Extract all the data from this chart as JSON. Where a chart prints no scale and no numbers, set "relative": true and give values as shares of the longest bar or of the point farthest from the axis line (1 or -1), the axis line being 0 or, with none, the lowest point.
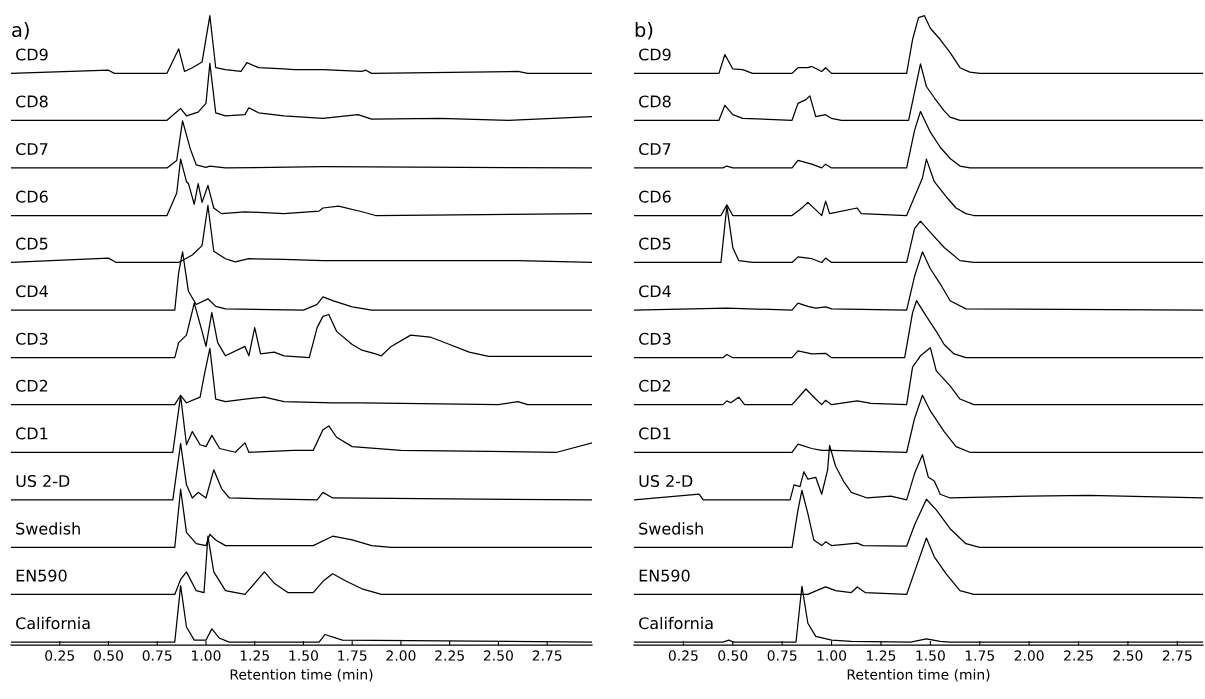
{
  "chart_data": [
    {
      "type": "line",
      "title": "a)",
      "xlabel": "Retention time (min)",
      "relative": true,
      "tick_labels": "x",
      "legend": false,
      "xlim": [
        0,
        2.98
      ],
      "xticks": [
        0.25,
        {
          "value": 0.5,
          "label": "0.50"
        },
        0.75,
        {
          "value": 1,
          "label": "1.00"
        },
        1.25,
        {
          "value": 1.5,
          "label": "1.50"
        },
        1.75,
        {
          "value": 2,
          "label": "2.00"
        },
        2.25,
        {
          "value": 2.5,
          "label": "2.50"
        },
        2.75
      ],
      "series": [
        {
          "name": "CD9",
          "color": "#000000",
          "x": [
            0,
            0.5,
            0.53,
            0.8,
            0.86,
            0.89,
            0.93,
            0.98,
            1.02,
            1.05,
            1.1,
            1.18,
            1.21,
            1.27,
            1.4,
            1.45,
            1.6,
            1.8,
            1.82,
            1.85,
            2.6,
            2.65,
            2.98
          ],
          "values": [
            0.908,
            0.913,
            0.908,
            0.908,
            0.947,
            0.911,
            0.917,
            0.926,
            1.0,
            0.917,
            0.914,
            0.911,
            0.925,
            0.917,
            0.915,
            0.914,
            0.914,
            0.911,
            0.913,
            0.908,
            0.911,
            0.908,
            0.908
          ]
        },
        {
          "name": "CD8",
          "color": "#000000",
          "x": [
            0,
            0.8,
            0.87,
            0.9,
            0.96,
            1.0,
            1.02,
            1.05,
            1.1,
            1.2,
            1.22,
            1.27,
            1.4,
            1.6,
            1.78,
            1.85,
            2.2,
            2.55,
            2.98
          ],
          "values": [
            0.833,
            0.833,
            0.852,
            0.84,
            0.846,
            0.86,
            0.924,
            0.845,
            0.84,
            0.842,
            0.853,
            0.845,
            0.84,
            0.836,
            0.842,
            0.835,
            0.836,
            0.833,
            0.839
          ]
        },
        {
          "name": "CD7",
          "color": "#000000",
          "x": [
            0,
            0.8,
            0.85,
            0.88,
            0.92,
            0.95,
            1.0,
            1.02,
            1.1,
            1.6,
            2.98
          ],
          "values": [
            0.757,
            0.757,
            0.769,
            0.832,
            0.787,
            0.762,
            0.758,
            0.76,
            0.757,
            0.759,
            0.757
          ]
        },
        {
          "name": "CD6",
          "color": "#000000",
          "x": [
            0,
            0.8,
            0.85,
            0.87,
            0.9,
            0.91,
            0.94,
            0.96,
            0.98,
            1.01,
            1.04,
            1.08,
            1.2,
            1.4,
            1.58,
            1.6,
            1.68,
            1.8,
            1.87,
            2.98
          ],
          "values": [
            0.681,
            0.681,
            0.717,
            0.771,
            0.735,
            0.732,
            0.699,
            0.732,
            0.702,
            0.729,
            0.693,
            0.684,
            0.687,
            0.684,
            0.688,
            0.693,
            0.696,
            0.687,
            0.681,
            0.684
          ]
        },
        {
          "name": "CD5",
          "color": "#000000",
          "x": [
            0,
            0.5,
            0.54,
            0.86,
            0.93,
            0.98,
            1.01,
            1.04,
            1.1,
            1.15,
            1.22,
            1.4,
            1.6,
            2.6,
            2.98
          ],
          "values": [
            0.606,
            0.613,
            0.606,
            0.606,
            0.618,
            0.633,
            0.697,
            0.624,
            0.612,
            0.607,
            0.612,
            0.611,
            0.609,
            0.609,
            0.606
          ]
        },
        {
          "name": "CD4",
          "color": "#000000",
          "x": [
            0,
            0.84,
            0.86,
            0.88,
            0.91,
            0.95,
            1.01,
            1.05,
            1.1,
            1.5,
            1.57,
            1.6,
            1.65,
            1.75,
            1.85,
            2.98
          ],
          "values": [
            0.53,
            0.53,
            0.59,
            0.623,
            0.56,
            0.539,
            0.548,
            0.536,
            0.532,
            0.53,
            0.539,
            0.551,
            0.545,
            0.535,
            0.53,
            0.53
          ]
        },
        {
          "name": "CD3",
          "color": "#000000",
          "x": [
            0,
            0.84,
            0.86,
            0.9,
            0.94,
            0.98,
            1.0,
            1.03,
            1.06,
            1.1,
            1.2,
            1.22,
            1.25,
            1.28,
            1.35,
            1.4,
            1.53,
            1.57,
            1.6,
            1.63,
            1.67,
            1.75,
            1.8,
            1.87,
            1.9,
            1.95,
            2.05,
            2.15,
            2.25,
            2.35,
            2.45,
            2.98
          ],
          "values": [
            0.454,
            0.454,
            0.478,
            0.49,
            0.541,
            0.496,
            0.472,
            0.526,
            0.478,
            0.457,
            0.472,
            0.457,
            0.502,
            0.46,
            0.463,
            0.457,
            0.454,
            0.502,
            0.52,
            0.523,
            0.496,
            0.475,
            0.466,
            0.46,
            0.457,
            0.472,
            0.49,
            0.487,
            0.475,
            0.463,
            0.456,
            0.456
          ]
        },
        {
          "name": "CD2",
          "color": "#000000",
          "x": [
            0,
            0.84,
            0.87,
            0.9,
            0.97,
            0.99,
            1.02,
            1.05,
            1.1,
            1.2,
            1.3,
            1.4,
            1.65,
            1.8,
            2.5,
            2.6,
            2.65,
            2.98
          ],
          "values": [
            0.379,
            0.379,
            0.394,
            0.382,
            0.391,
            0.424,
            0.469,
            0.388,
            0.384,
            0.388,
            0.391,
            0.384,
            0.382,
            0.382,
            0.379,
            0.384,
            0.379,
            0.379
          ]
        },
        {
          "name": "CD1",
          "color": "#000000",
          "x": [
            0,
            0.83,
            0.87,
            0.9,
            0.93,
            0.97,
            1.0,
            1.03,
            1.07,
            1.15,
            1.2,
            1.22,
            1.45,
            1.55,
            1.6,
            1.63,
            1.67,
            1.75,
            2.0,
            2.8,
            2.98
          ],
          "values": [
            0.303,
            0.303,
            0.393,
            0.315,
            0.336,
            0.315,
            0.312,
            0.33,
            0.309,
            0.303,
            0.318,
            0.303,
            0.306,
            0.306,
            0.339,
            0.345,
            0.327,
            0.312,
            0.306,
            0.303,
            0.318
          ]
        },
        {
          "name": "US 2-D",
          "color": "#000000",
          "x": [
            0,
            0.83,
            0.87,
            0.9,
            0.93,
            0.96,
            1.0,
            1.04,
            1.08,
            1.12,
            1.57,
            1.6,
            1.65,
            2.98
          ],
          "values": [
            0.227,
            0.227,
            0.317,
            0.251,
            0.23,
            0.239,
            0.23,
            0.275,
            0.245,
            0.23,
            0.227,
            0.239,
            0.23,
            0.227
          ]
        },
        {
          "name": "Swedish",
          "color": "#000000",
          "x": [
            0,
            0.84,
            0.87,
            0.9,
            0.95,
            1.0,
            1.02,
            1.05,
            1.1,
            1.3,
            1.55,
            1.65,
            1.75,
            1.85,
            1.95,
            2.98
          ],
          "values": [
            0.151,
            0.151,
            0.244,
            0.175,
            0.157,
            0.154,
            0.172,
            0.163,
            0.154,
            0.154,
            0.154,
            0.169,
            0.163,
            0.154,
            0.151,
            0.151
          ]
        },
        {
          "name": "EN590",
          "color": "#000000",
          "x": [
            0,
            0.84,
            0.87,
            0.9,
            0.95,
            0.99,
            1.01,
            1.04,
            1.1,
            1.2,
            1.3,
            1.35,
            1.42,
            1.55,
            1.6,
            1.65,
            1.72,
            1.8,
            1.9,
            2.98
          ],
          "values": [
            0.076,
            0.076,
            0.1,
            0.112,
            0.082,
            0.079,
            0.169,
            0.112,
            0.082,
            0.076,
            0.112,
            0.094,
            0.079,
            0.079,
            0.097,
            0.109,
            0.097,
            0.085,
            0.076,
            0.076
          ]
        },
        {
          "name": "California",
          "color": "#000000",
          "x": [
            0,
            0.84,
            0.87,
            0.9,
            0.94,
            1.0,
            1.03,
            1.07,
            1.12,
            1.58,
            1.61,
            1.7,
            2.98
          ],
          "values": [
            0,
            0,
            0.09,
            0.024,
            0.003,
            0.003,
            0.021,
            0.006,
            0,
            0,
            0.012,
            0.003,
            0
          ]
        }
      ]
    },
    {
      "type": "line",
      "title": "b)",
      "xlabel": "Retention time (min)",
      "relative": true,
      "tick_labels": "x",
      "legend": false,
      "xlim": [
        0,
        2.88
      ],
      "xticks": [
        0.25,
        {
          "value": 0.5,
          "label": "0.50"
        },
        0.75,
        {
          "value": 1,
          "label": "1.00"
        },
        1.25,
        {
          "value": 1.5,
          "label": "1.50"
        },
        1.75,
        {
          "value": 2,
          "label": "2.00"
        },
        2.25,
        {
          "value": 2.5,
          "label": "2.50"
        },
        2.75
      ],
      "series": [
        {
          "name": "CD9",
          "color": "#000000",
          "x": [
            0,
            0.43,
            0.46,
            0.5,
            0.55,
            0.6,
            0.8,
            0.83,
            0.88,
            0.9,
            0.95,
            0.97,
            1.0,
            1.38,
            1.41,
            1.44,
            1.47,
            1.5,
            1.55,
            1.6,
            1.65,
            1.7,
            1.75,
            2.88
          ],
          "values": [
            0.908,
            0.908,
            0.938,
            0.915,
            0.914,
            0.908,
            0.908,
            0.917,
            0.917,
            0.919,
            0.911,
            0.917,
            0.908,
            0.908,
            0.962,
            0.997,
            1.0,
            0.98,
            0.962,
            0.941,
            0.917,
            0.91,
            0.908,
            0.908
          ]
        },
        {
          "name": "CD8",
          "color": "#000000",
          "x": [
            0,
            0.43,
            0.46,
            0.5,
            0.55,
            0.8,
            0.83,
            0.87,
            0.89,
            0.92,
            0.97,
            1.0,
            1.05,
            1.39,
            1.43,
            1.45,
            1.48,
            1.52,
            1.57,
            1.6,
            1.65,
            2.88
          ],
          "values": [
            0.833,
            0.833,
            0.857,
            0.842,
            0.836,
            0.833,
            0.86,
            0.866,
            0.872,
            0.839,
            0.842,
            0.836,
            0.833,
            0.833,
            0.893,
            0.923,
            0.887,
            0.869,
            0.848,
            0.838,
            0.833,
            0.833
          ]
        },
        {
          "name": "CD7",
          "color": "#000000",
          "x": [
            0,
            0.45,
            0.47,
            0.5,
            0.8,
            0.83,
            0.9,
            0.95,
            0.97,
            1.0,
            1.38,
            1.42,
            1.45,
            1.5,
            1.55,
            1.6,
            1.65,
            1.7,
            2.88
          ],
          "values": [
            0.757,
            0.757,
            0.76,
            0.757,
            0.757,
            0.769,
            0.763,
            0.757,
            0.763,
            0.757,
            0.757,
            0.817,
            0.847,
            0.814,
            0.79,
            0.772,
            0.76,
            0.757,
            0.757
          ]
        },
        {
          "name": "CD6",
          "color": "#000000",
          "x": [
            0,
            0.44,
            0.47,
            0.5,
            0.8,
            0.85,
            0.88,
            0.92,
            0.95,
            0.97,
            0.99,
            1.13,
            1.15,
            1.38,
            1.42,
            1.46,
            1.48,
            1.52,
            1.58,
            1.63,
            1.68,
            1.72,
            2.88
          ],
          "values": [
            0.681,
            0.681,
            0.698,
            0.681,
            0.681,
            0.693,
            0.702,
            0.69,
            0.681,
            0.704,
            0.684,
            0.693,
            0.684,
            0.681,
            0.711,
            0.741,
            0.771,
            0.735,
            0.711,
            0.693,
            0.684,
            0.681,
            0.681
          ]
        },
        {
          "name": "CD5",
          "color": "#000000",
          "x": [
            0,
            0.44,
            0.46,
            0.47,
            0.5,
            0.53,
            0.6,
            0.8,
            0.83,
            0.9,
            0.95,
            0.97,
            1.0,
            1.38,
            1.42,
            1.45,
            1.5,
            1.57,
            1.65,
            1.72,
            2.88
          ],
          "values": [
            0.606,
            0.606,
            0.666,
            0.696,
            0.63,
            0.609,
            0.606,
            0.606,
            0.615,
            0.612,
            0.606,
            0.613,
            0.606,
            0.606,
            0.66,
            0.672,
            0.654,
            0.63,
            0.609,
            0.606,
            0.606
          ]
        },
        {
          "name": "CD4",
          "color": "#000000",
          "x": [
            0,
            0.47,
            0.8,
            0.83,
            0.88,
            0.92,
            0.97,
            1.0,
            1.38,
            1.42,
            1.46,
            1.5,
            1.55,
            1.6,
            1.68,
            2.88
          ],
          "values": [
            0.53,
            0.533,
            0.53,
            0.541,
            0.536,
            0.533,
            0.535,
            0.532,
            0.53,
            0.584,
            0.623,
            0.596,
            0.572,
            0.545,
            0.532,
            0.53
          ]
        },
        {
          "name": "CD3",
          "color": "#000000",
          "x": [
            0,
            0.45,
            0.47,
            0.5,
            0.8,
            0.83,
            0.9,
            0.97,
            1.0,
            1.37,
            1.41,
            1.43,
            1.48,
            1.53,
            1.57,
            1.62,
            1.68,
            2.88
          ],
          "values": [
            0.454,
            0.454,
            0.459,
            0.454,
            0.454,
            0.465,
            0.46,
            0.461,
            0.454,
            0.454,
            0.526,
            0.545,
            0.52,
            0.496,
            0.475,
            0.46,
            0.454,
            0.454
          ]
        },
        {
          "name": "CD2",
          "color": "#000000",
          "x": [
            0,
            0.45,
            0.47,
            0.49,
            0.53,
            0.56,
            0.8,
            0.87,
            0.92,
            0.95,
            0.97,
            1.0,
            1.13,
            1.2,
            1.38,
            1.41,
            1.45,
            1.5,
            1.53,
            1.6,
            1.65,
            1.72,
            2.88
          ],
          "values": [
            0.379,
            0.379,
            0.385,
            0.382,
            0.391,
            0.379,
            0.379,
            0.404,
            0.388,
            0.379,
            0.386,
            0.379,
            0.385,
            0.381,
            0.379,
            0.439,
            0.457,
            0.47,
            0.433,
            0.409,
            0.388,
            0.379,
            0.379
          ]
        },
        {
          "name": "CD1",
          "color": "#000000",
          "x": [
            0,
            0.8,
            0.83,
            0.9,
            0.95,
            1.0,
            1.38,
            1.42,
            1.46,
            1.5,
            1.57,
            1.63,
            1.7,
            2.88
          ],
          "values": [
            0.303,
            0.303,
            0.316,
            0.309,
            0.306,
            0.306,
            0.303,
            0.357,
            0.394,
            0.369,
            0.336,
            0.312,
            0.303,
            0.303
          ]
        },
        {
          "name": "US 2-D",
          "color": "#000000",
          "x": [
            0,
            0.33,
            0.35,
            0.79,
            0.81,
            0.84,
            0.86,
            0.88,
            0.92,
            0.95,
            0.98,
            0.99,
            1.02,
            1.06,
            1.1,
            1.18,
            1.3,
            1.38,
            1.42,
            1.46,
            1.49,
            1.52,
            1.55,
            1.6,
            2.0,
            2.3,
            2.88
          ],
          "values": [
            0.227,
            0.236,
            0.227,
            0.227,
            0.251,
            0.248,
            0.272,
            0.26,
            0.263,
            0.236,
            0.275,
            0.314,
            0.281,
            0.257,
            0.239,
            0.23,
            0.233,
            0.227,
            0.269,
            0.299,
            0.263,
            0.257,
            0.236,
            0.23,
            0.233,
            0.234,
            0.23
          ]
        },
        {
          "name": "Swedish",
          "color": "#000000",
          "x": [
            0,
            0.8,
            0.83,
            0.85,
            0.88,
            0.91,
            0.95,
            0.97,
            1.0,
            1.13,
            1.16,
            1.38,
            1.42,
            1.48,
            1.53,
            1.6,
            1.68,
            1.75,
            2.88
          ],
          "values": [
            0.151,
            0.151,
            0.211,
            0.242,
            0.205,
            0.163,
            0.154,
            0.16,
            0.154,
            0.158,
            0.154,
            0.153,
            0.187,
            0.228,
            0.211,
            0.181,
            0.157,
            0.151,
            0.151
          ]
        },
        {
          "name": "EN590",
          "color": "#000000",
          "x": [
            0,
            0.88,
            0.93,
            0.97,
            1.02,
            1.1,
            1.13,
            1.17,
            1.38,
            1.42,
            1.48,
            1.52,
            1.58,
            1.65,
            1.72,
            2.88
          ],
          "values": [
            0.076,
            0.076,
            0.083,
            0.088,
            0.082,
            0.079,
            0.088,
            0.079,
            0.076,
            0.112,
            0.166,
            0.136,
            0.109,
            0.082,
            0.076,
            0.076
          ]
        },
        {
          "name": "California",
          "color": "#000000",
          "x": [
            0,
            0.45,
            0.48,
            0.5,
            0.82,
            0.84,
            0.85,
            0.88,
            0.92,
            1.0,
            1.1,
            1.4,
            1.48,
            1.55,
            1.6,
            2.88
          ],
          "values": [
            0,
            0,
            0.003,
            0,
            0,
            0.06,
            0.089,
            0.03,
            0.009,
            0.003,
            0.001,
            0,
            0.005,
            0.001,
            0,
            0
          ]
        }
      ]
    }
  ]
}
